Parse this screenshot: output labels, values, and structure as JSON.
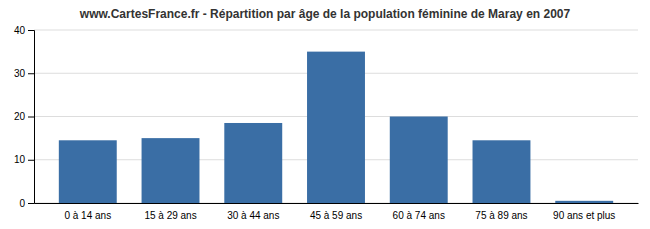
{
  "chart_data": {
    "type": "bar",
    "title": "www.CartesFrance.fr - Répartition par âge de la population féminine de Maray en 2007",
    "categories": [
      "0 à 14 ans",
      "15 à 29 ans",
      "30 à 44 ans",
      "45 à 59 ans",
      "60 à 74 ans",
      "75 à 89 ans",
      "90 ans et plus"
    ],
    "values": [
      14.5,
      15.0,
      18.5,
      35.0,
      20.0,
      14.5,
      0.5
    ],
    "color": "#3a6ea5",
    "ylim": [
      0,
      40
    ],
    "yticks": [
      0,
      10,
      20,
      30,
      40
    ],
    "grid": true
  }
}
